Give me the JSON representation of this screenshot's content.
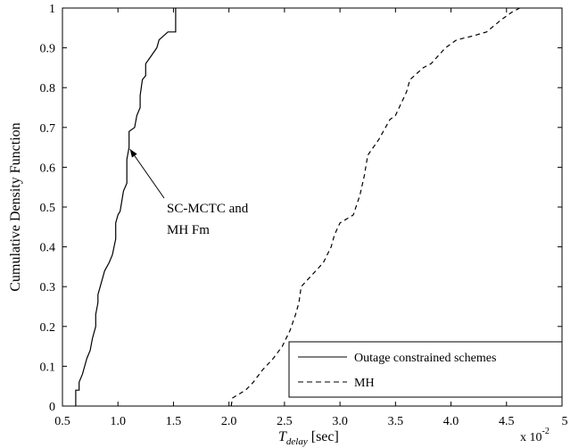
{
  "chart_data": {
    "type": "line",
    "xlabel_main": "T",
    "xlabel_sub": "delay",
    "xlabel_unit": " [sec]",
    "ylabel": "Cumulative Density Function",
    "x_multiplier": "x 10",
    "x_multiplier_exp": "-2",
    "x_last_tick": "5",
    "xlim": [
      0.5,
      5.0
    ],
    "ylim": [
      0,
      1
    ],
    "xticks": [
      "0.5",
      "1.0",
      "1.5",
      "2.0",
      "2.5",
      "3.0",
      "3.5",
      "4.0",
      "4.5"
    ],
    "yticks": [
      "0",
      "0.1",
      "0.2",
      "0.3",
      "0.4",
      "0.5",
      "0.6",
      "0.7",
      "0.8",
      "0.9",
      "1"
    ],
    "grid": false,
    "legend_position": "bottom-right",
    "series": [
      {
        "name": "Outage constrained schemes",
        "style": "solid",
        "points": [
          [
            0.62,
            0.0
          ],
          [
            0.62,
            0.04
          ],
          [
            0.65,
            0.04
          ],
          [
            0.65,
            0.06
          ],
          [
            0.68,
            0.08
          ],
          [
            0.7,
            0.1
          ],
          [
            0.72,
            0.12
          ],
          [
            0.75,
            0.14
          ],
          [
            0.77,
            0.17
          ],
          [
            0.8,
            0.2
          ],
          [
            0.8,
            0.23
          ],
          [
            0.82,
            0.26
          ],
          [
            0.82,
            0.28
          ],
          [
            0.85,
            0.31
          ],
          [
            0.88,
            0.34
          ],
          [
            0.92,
            0.36
          ],
          [
            0.95,
            0.38
          ],
          [
            0.98,
            0.42
          ],
          [
            0.98,
            0.46
          ],
          [
            1.0,
            0.48
          ],
          [
            1.02,
            0.49
          ],
          [
            1.05,
            0.54
          ],
          [
            1.08,
            0.56
          ],
          [
            1.08,
            0.62
          ],
          [
            1.1,
            0.65
          ],
          [
            1.1,
            0.69
          ],
          [
            1.15,
            0.7
          ],
          [
            1.17,
            0.73
          ],
          [
            1.2,
            0.75
          ],
          [
            1.2,
            0.78
          ],
          [
            1.22,
            0.82
          ],
          [
            1.25,
            0.83
          ],
          [
            1.25,
            0.86
          ],
          [
            1.3,
            0.88
          ],
          [
            1.35,
            0.9
          ],
          [
            1.37,
            0.92
          ],
          [
            1.45,
            0.94
          ],
          [
            1.52,
            0.94
          ],
          [
            1.52,
            1.0
          ]
        ]
      },
      {
        "name": "MH",
        "style": "dashed",
        "points": [
          [
            2.02,
            0.0
          ],
          [
            2.03,
            0.02
          ],
          [
            2.15,
            0.04
          ],
          [
            2.22,
            0.06
          ],
          [
            2.3,
            0.09
          ],
          [
            2.4,
            0.12
          ],
          [
            2.48,
            0.15
          ],
          [
            2.55,
            0.19
          ],
          [
            2.6,
            0.23
          ],
          [
            2.63,
            0.26
          ],
          [
            2.65,
            0.3
          ],
          [
            2.75,
            0.33
          ],
          [
            2.85,
            0.36
          ],
          [
            2.92,
            0.4
          ],
          [
            2.95,
            0.43
          ],
          [
            3.0,
            0.46
          ],
          [
            3.12,
            0.48
          ],
          [
            3.18,
            0.53
          ],
          [
            3.22,
            0.58
          ],
          [
            3.25,
            0.63
          ],
          [
            3.35,
            0.67
          ],
          [
            3.45,
            0.72
          ],
          [
            3.5,
            0.73
          ],
          [
            3.55,
            0.76
          ],
          [
            3.6,
            0.79
          ],
          [
            3.63,
            0.82
          ],
          [
            3.75,
            0.85
          ],
          [
            3.82,
            0.86
          ],
          [
            3.95,
            0.9
          ],
          [
            4.05,
            0.92
          ],
          [
            4.2,
            0.93
          ],
          [
            4.32,
            0.94
          ],
          [
            4.45,
            0.97
          ],
          [
            4.55,
            0.99
          ],
          [
            4.62,
            1.0
          ]
        ]
      }
    ],
    "annotations": [
      {
        "lines": [
          "SC-MCTC and",
          "MH Fm"
        ],
        "arrow_to": [
          1.1,
          0.65
        ]
      }
    ]
  }
}
